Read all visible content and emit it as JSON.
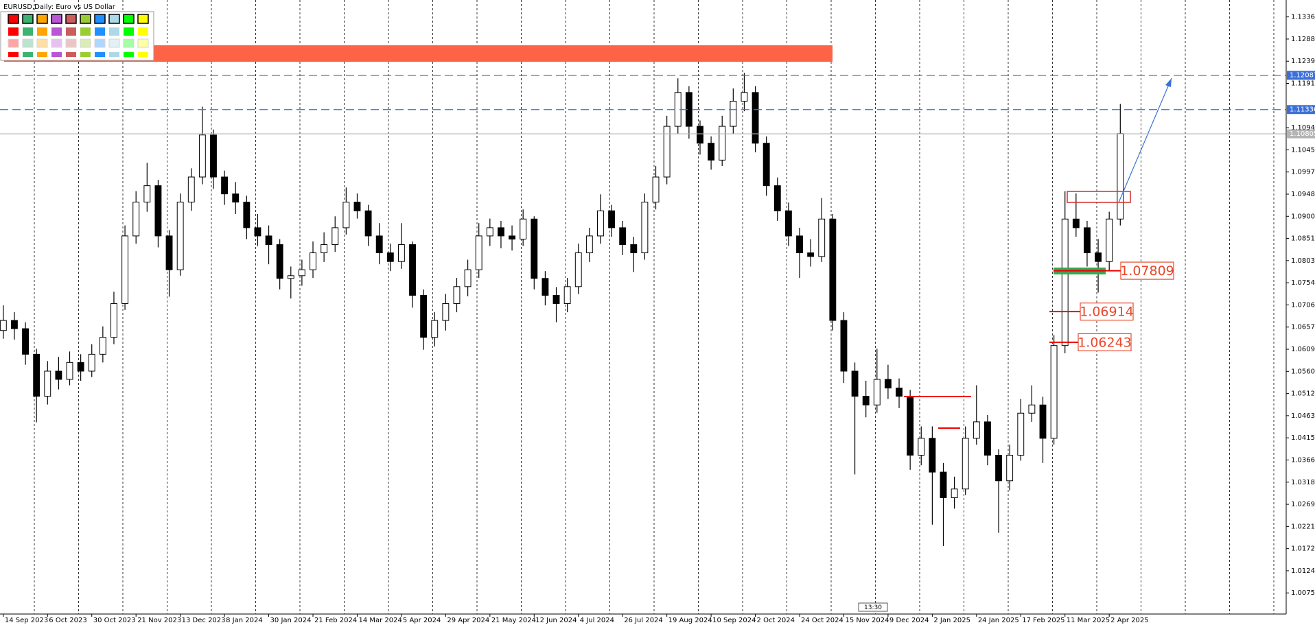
{
  "chart_data": {
    "type": "candlestick",
    "title": "EURUSD,Daily:  Euro vs US Dollar",
    "candle_color": "#000000",
    "candles": [
      [
        1.065,
        1.0705,
        1.0632,
        1.0672
      ],
      [
        1.0672,
        1.069,
        1.063,
        1.0654
      ],
      [
        1.0654,
        1.0668,
        1.0575,
        1.0598
      ],
      [
        1.0598,
        1.061,
        1.0449,
        1.0506
      ],
      [
        1.0506,
        1.0583,
        1.0488,
        1.0561
      ],
      [
        1.0561,
        1.0592,
        1.0521,
        1.0543
      ],
      [
        1.0543,
        1.0604,
        1.053,
        1.058
      ],
      [
        1.058,
        1.0598,
        1.054,
        1.0561
      ],
      [
        1.0561,
        1.062,
        1.0548,
        1.0598
      ],
      [
        1.0598,
        1.0659,
        1.058,
        1.0635
      ],
      [
        1.0635,
        1.0735,
        1.062,
        1.0709
      ],
      [
        1.0709,
        1.088,
        1.0695,
        1.0857
      ],
      [
        1.0857,
        1.0955,
        1.084,
        1.0931
      ],
      [
        1.0931,
        1.1017,
        1.091,
        1.0967
      ],
      [
        1.0967,
        1.098,
        1.0832,
        1.0857
      ],
      [
        1.0857,
        1.087,
        1.0724,
        1.0783
      ],
      [
        1.0783,
        1.095,
        1.077,
        1.0931
      ],
      [
        1.0931,
        1.1005,
        1.0912,
        1.0986
      ],
      [
        1.0986,
        1.114,
        1.097,
        1.1078
      ],
      [
        1.1078,
        1.109,
        1.096,
        1.0986
      ],
      [
        1.0986,
        1.1,
        1.0925,
        1.0949
      ],
      [
        1.0949,
        1.0975,
        1.0905,
        1.0931
      ],
      [
        1.0931,
        1.0945,
        1.085,
        1.0875
      ],
      [
        1.0875,
        1.0905,
        1.0835,
        1.0857
      ],
      [
        1.0857,
        1.088,
        1.0795,
        1.0838
      ],
      [
        1.0838,
        1.085,
        1.074,
        1.0764
      ],
      [
        1.0764,
        1.079,
        1.072,
        1.077
      ],
      [
        1.077,
        1.0805,
        1.0748,
        1.0783
      ],
      [
        1.0783,
        1.0845,
        1.0765,
        1.082
      ],
      [
        1.082,
        1.0865,
        1.08,
        1.0838
      ],
      [
        1.0838,
        1.09,
        1.0822,
        1.0875
      ],
      [
        1.0875,
        1.0963,
        1.086,
        1.0931
      ],
      [
        1.0931,
        1.095,
        1.0895,
        1.0912
      ],
      [
        1.0912,
        1.0925,
        1.0835,
        1.0857
      ],
      [
        1.0857,
        1.0885,
        1.0795,
        1.082
      ],
      [
        1.082,
        1.084,
        1.078,
        1.0801
      ],
      [
        1.0801,
        1.0885,
        1.0785,
        1.0838
      ],
      [
        1.0838,
        1.0845,
        1.07,
        1.0727
      ],
      [
        1.0727,
        1.074,
        1.0608,
        1.0635
      ],
      [
        1.0635,
        1.069,
        1.0615,
        1.0672
      ],
      [
        1.0672,
        1.073,
        1.065,
        1.0709
      ],
      [
        1.0709,
        1.0765,
        1.069,
        1.0746
      ],
      [
        1.0746,
        1.0805,
        1.0725,
        1.0783
      ],
      [
        1.0783,
        1.0885,
        1.0765,
        1.0857
      ],
      [
        1.0857,
        1.0895,
        1.0835,
        1.0875
      ],
      [
        1.0875,
        1.089,
        1.083,
        1.0857
      ],
      [
        1.0857,
        1.088,
        1.0825,
        1.085
      ],
      [
        1.085,
        1.0915,
        1.0835,
        1.0894
      ],
      [
        1.0894,
        1.09,
        1.074,
        1.0764
      ],
      [
        1.0764,
        1.078,
        1.0705,
        1.0727
      ],
      [
        1.0727,
        1.0745,
        1.0668,
        1.0709
      ],
      [
        1.0709,
        1.0765,
        1.069,
        1.0746
      ],
      [
        1.0746,
        1.084,
        1.073,
        1.082
      ],
      [
        1.082,
        1.0875,
        1.08,
        1.0857
      ],
      [
        1.0857,
        1.0948,
        1.084,
        1.0912
      ],
      [
        1.0912,
        1.0925,
        1.0855,
        1.0875
      ],
      [
        1.0875,
        1.089,
        1.0815,
        1.0838
      ],
      [
        1.0838,
        1.0855,
        1.0778,
        1.082
      ],
      [
        1.082,
        1.095,
        1.0805,
        1.0931
      ],
      [
        1.0931,
        1.101,
        1.0915,
        1.0986
      ],
      [
        1.0986,
        1.112,
        1.097,
        1.1097
      ],
      [
        1.1097,
        1.1202,
        1.108,
        1.1171
      ],
      [
        1.1171,
        1.1185,
        1.107,
        1.1097
      ],
      [
        1.1097,
        1.111,
        1.1035,
        1.106
      ],
      [
        1.106,
        1.1075,
        1.1002,
        1.1023
      ],
      [
        1.1023,
        1.112,
        1.101,
        1.1097
      ],
      [
        1.1097,
        1.118,
        1.108,
        1.1152
      ],
      [
        1.1152,
        1.1214,
        1.113,
        1.1171
      ],
      [
        1.1171,
        1.1185,
        1.104,
        1.106
      ],
      [
        1.106,
        1.1075,
        1.0945,
        1.0967
      ],
      [
        1.0967,
        1.0985,
        1.089,
        1.0912
      ],
      [
        1.0912,
        1.093,
        1.0835,
        1.0857
      ],
      [
        1.0857,
        1.0875,
        1.0765,
        1.082
      ],
      [
        1.082,
        1.085,
        1.079,
        1.0812
      ],
      [
        1.0812,
        1.094,
        1.08,
        1.0894
      ],
      [
        1.0894,
        1.0905,
        1.065,
        1.0672
      ],
      [
        1.0672,
        1.069,
        1.0535,
        1.0561
      ],
      [
        1.0561,
        1.058,
        1.0335,
        1.0506
      ],
      [
        1.0506,
        1.054,
        1.046,
        1.0487
      ],
      [
        1.0487,
        1.061,
        1.047,
        1.0543
      ],
      [
        1.0543,
        1.0575,
        1.05,
        1.0524
      ],
      [
        1.0524,
        1.0545,
        1.048,
        1.0506
      ],
      [
        1.0506,
        1.052,
        1.0345,
        1.0377
      ],
      [
        1.0377,
        1.044,
        1.0355,
        1.0414
      ],
      [
        1.0414,
        1.044,
        1.0225,
        1.034
      ],
      [
        1.034,
        1.036,
        1.0178,
        1.0284
      ],
      [
        1.0284,
        1.033,
        1.026,
        1.0303
      ],
      [
        1.0303,
        1.044,
        1.029,
        1.0414
      ],
      [
        1.0414,
        1.053,
        1.04,
        1.045
      ],
      [
        1.045,
        1.0465,
        1.0355,
        1.0377
      ],
      [
        1.0377,
        1.039,
        1.0207,
        1.0321
      ],
      [
        1.0321,
        1.04,
        1.03,
        1.0377
      ],
      [
        1.0377,
        1.05,
        1.0365,
        1.0469
      ],
      [
        1.0469,
        1.053,
        1.045,
        1.0487
      ],
      [
        1.0487,
        1.0505,
        1.036,
        1.0414
      ],
      [
        1.0414,
        1.064,
        1.04,
        1.0617
      ],
      [
        1.0617,
        1.0955,
        1.06,
        1.0894
      ],
      [
        1.0894,
        1.095,
        1.0855,
        1.0875
      ],
      [
        1.0875,
        1.089,
        1.079,
        1.082
      ],
      [
        1.082,
        1.085,
        1.0733,
        1.0801
      ],
      [
        1.0801,
        1.091,
        1.078,
        1.0894
      ],
      [
        1.0894,
        1.1146,
        1.088,
        1.1081
      ]
    ],
    "xlim": [
      -0.3,
      116
    ],
    "xticks": [
      {
        "value": 0,
        "label": "14 Sep 2023"
      },
      {
        "value": 4,
        "label": "6 Oct 2023"
      },
      {
        "value": 8,
        "label": "30 Oct 2023"
      },
      {
        "value": 12,
        "label": "21 Nov 2023"
      },
      {
        "value": 16,
        "label": "13 Dec 2023"
      },
      {
        "value": 20,
        "label": "8 Jan 2024"
      },
      {
        "value": 24,
        "label": "30 Jan 2024"
      },
      {
        "value": 28,
        "label": "21 Feb 2024"
      },
      {
        "value": 32,
        "label": "14 Mar 2024"
      },
      {
        "value": 36,
        "label": "5 Apr 2024"
      },
      {
        "value": 40,
        "label": "29 Apr 2024"
      },
      {
        "value": 44,
        "label": "21 May 2024"
      },
      {
        "value": 48,
        "label": "12 Jun 2024"
      },
      {
        "value": 52,
        "label": "4 Jul 2024"
      },
      {
        "value": 56,
        "label": "26 Jul 2024"
      },
      {
        "value": 60,
        "label": "19 Aug 2024"
      },
      {
        "value": 64,
        "label": "10 Sep 2024"
      },
      {
        "value": 68,
        "label": "2 Oct 2024"
      },
      {
        "value": 72,
        "label": "24 Oct 2024"
      },
      {
        "value": 76,
        "label": "15 Nov 2024"
      },
      {
        "value": 80,
        "label": "9 Dec 2024"
      },
      {
        "value": 84,
        "label": "2 Jan 2025"
      },
      {
        "value": 88,
        "label": "24 Jan 2025"
      },
      {
        "value": 92,
        "label": "17 Feb 2025"
      },
      {
        "value": 96,
        "label": "11 Mar 2025"
      },
      {
        "value": 100,
        "label": "2 Apr 2025"
      }
    ],
    "ylim": [
      1.00293,
      1.13735
    ],
    "yticks": [
      1.13365,
      {
        "value": 1.1288,
        "label": "1.12880"
      },
      1.12395,
      {
        "value": 1.1191,
        "label": "1.11910"
      },
      {
        "value": 1.1094,
        "label": "1.10940"
      },
      1.10455,
      {
        "value": 1.0997,
        "label": "1.09970"
      },
      1.09485,
      {
        "value": 1.09,
        "label": "1.09000"
      },
      1.08515,
      {
        "value": 1.0803,
        "label": "1.08030"
      },
      1.07545,
      {
        "value": 1.0706,
        "label": "1.07060"
      },
      1.06575,
      {
        "value": 1.0609,
        "label": "1.06090"
      },
      1.05605,
      {
        "value": 1.0512,
        "label": "1.05120"
      },
      1.04635,
      {
        "value": 1.0415,
        "label": "1.04150"
      },
      1.03665,
      {
        "value": 1.0318,
        "label": "1.03180"
      },
      1.02695,
      {
        "value": 1.0221,
        "label": "1.02210"
      },
      1.01725,
      {
        "value": 1.0124,
        "label": "1.01240"
      },
      1.00755
    ],
    "hlines": [
      {
        "value": 1.12087,
        "color": "#3b6fd8",
        "dashed": true
      },
      {
        "value": 1.11336,
        "color": "#3b6fd8",
        "dashed": true
      },
      {
        "value": 1.10805,
        "color": "#b4b4b4",
        "dashed": false
      }
    ],
    "levels": [
      {
        "value": 1.07809,
        "color": "#e8472a"
      },
      {
        "value": 1.06914,
        "color": "#e8472a"
      },
      {
        "value": 1.06243,
        "color": "#e8472a"
      }
    ],
    "timer": "13:30"
  }
}
